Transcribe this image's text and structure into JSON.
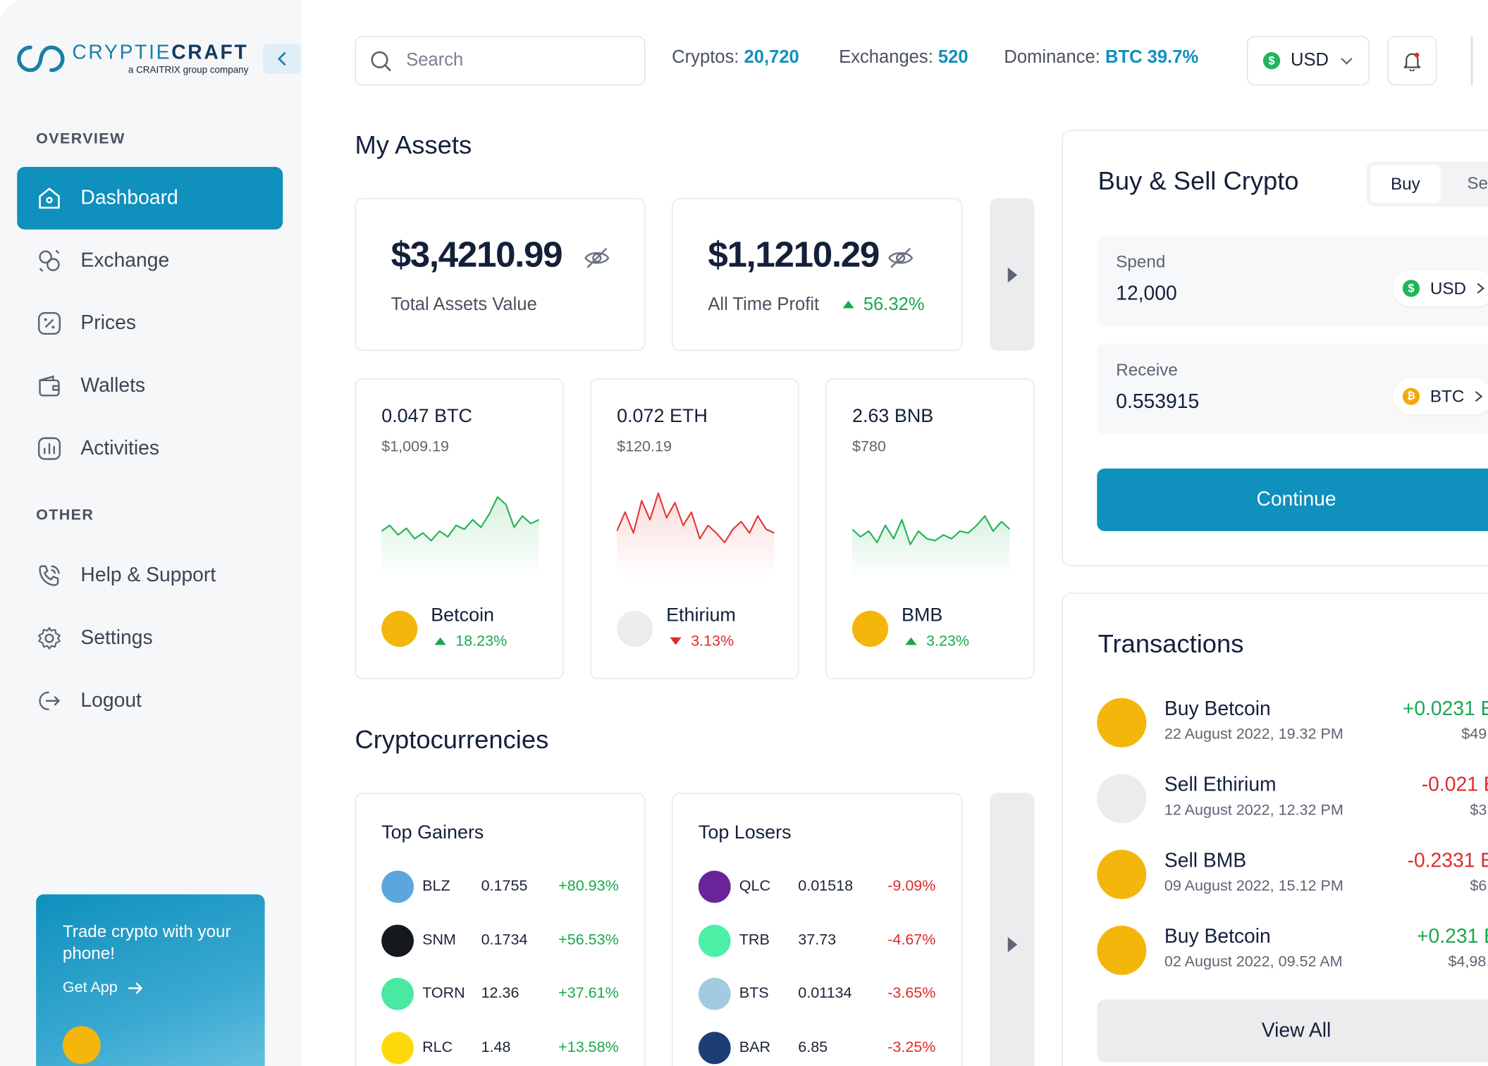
{
  "brand": {
    "name_light": "CRYPTIE",
    "name_bold": "CRAFT",
    "tagline": "a CRAITRIX group company"
  },
  "sidebar": {
    "overview_label": "OVERVIEW",
    "other_label": "OTHER",
    "items": [
      {
        "label": "Dashboard",
        "icon": "home-icon",
        "active": true
      },
      {
        "label": "Exchange",
        "icon": "exchange-icon"
      },
      {
        "label": "Prices",
        "icon": "percent-icon"
      },
      {
        "label": "Wallets",
        "icon": "wallet-icon"
      },
      {
        "label": "Activities",
        "icon": "chart-icon"
      }
    ],
    "other_items": [
      {
        "label": "Help & Support",
        "icon": "phone-icon"
      },
      {
        "label": "Settings",
        "icon": "gear-icon"
      },
      {
        "label": "Logout",
        "icon": "logout-icon"
      }
    ],
    "promo": {
      "title": "Trade crypto with your phone!",
      "link": "Get App"
    }
  },
  "header": {
    "search_placeholder": "Search",
    "stats": [
      {
        "label": "Cryptos:",
        "value": "20,720"
      },
      {
        "label": "Exchanges:",
        "value": "520"
      },
      {
        "label": "Dominance:",
        "value": "BTC 39.7%"
      }
    ],
    "currency": "USD",
    "currency_symbol": "$"
  },
  "assets": {
    "title": "My Assets",
    "total_value": "$3,4210.99",
    "total_label": "Total Assets Value",
    "profit_value": "$1,1210.29",
    "profit_label": "All Time Profit",
    "profit_pct": "56.32%",
    "coins": [
      {
        "amount": "0.047 BTC",
        "usd": "$1,009.19",
        "name": "Betcoin",
        "change": "18.23%",
        "direction": "up",
        "color": "#f5b60b",
        "spark": [
          50,
          44,
          54,
          47,
          58,
          52,
          60,
          50,
          56,
          44,
          48,
          38,
          46,
          32,
          14,
          22,
          46,
          34,
          42,
          38
        ]
      },
      {
        "amount": "0.072 ETH",
        "usd": "$120.19",
        "name": "Ethirium",
        "change": "3.13%",
        "direction": "down",
        "color": "#ececec",
        "spark": [
          50,
          30,
          52,
          18,
          38,
          10,
          36,
          20,
          44,
          30,
          58,
          44,
          52,
          62,
          48,
          40,
          52,
          34,
          48,
          52
        ]
      },
      {
        "amount": "2.63 BNB",
        "usd": "$780",
        "name": "BMB",
        "change": "3.23%",
        "direction": "up",
        "color": "#f5b60b",
        "spark": [
          48,
          56,
          50,
          62,
          44,
          58,
          38,
          64,
          50,
          58,
          60,
          54,
          58,
          50,
          52,
          44,
          34,
          50,
          40,
          48
        ]
      }
    ]
  },
  "cryptos": {
    "title": "Cryptocurrencies",
    "gainers_title": "Top Gainers",
    "gainers": [
      {
        "symbol": "BLZ",
        "price": "0.1755",
        "change": "+80.93%",
        "color": "#5aa6dd"
      },
      {
        "symbol": "SNM",
        "price": "0.1734",
        "change": "+56.53%",
        "color": "#15181d"
      },
      {
        "symbol": "TORN",
        "price": "12.36",
        "change": "+37.61%",
        "color": "#4ae9a2"
      },
      {
        "symbol": "RLC",
        "price": "1.48",
        "change": "+13.58%",
        "color": "#fcd90a"
      }
    ],
    "losers_title": "Top Losers",
    "losers": [
      {
        "symbol": "QLC",
        "price": "0.01518",
        "change": "-9.09%",
        "color": "#6a2399"
      },
      {
        "symbol": "TRB",
        "price": "37.73",
        "change": "-4.67%",
        "color": "#4cefa6"
      },
      {
        "symbol": "BTS",
        "price": "0.01134",
        "change": "-3.65%",
        "color": "#a3cbdf"
      },
      {
        "symbol": "BAR",
        "price": "6.85",
        "change": "-3.25%",
        "color": "#1c3e74"
      }
    ]
  },
  "trade": {
    "title": "Buy & Sell Crypto",
    "tab_buy": "Buy",
    "tab_sell": "Se",
    "spend_label": "Spend",
    "spend_value": "12,000",
    "spend_currency": "USD",
    "receive_label": "Receive",
    "receive_value": "0.553915",
    "receive_currency": "BTC",
    "continue": "Continue"
  },
  "transactions": {
    "title": "Transactions",
    "items": [
      {
        "name": "Buy Betcoin",
        "date": "22 August 2022, 19.32 PM",
        "amount": "+0.0231 E",
        "usd": "$49",
        "direction": "up",
        "color": "#f5b60b"
      },
      {
        "name": "Sell Ethirium",
        "date": "12 August 2022, 12.32 PM",
        "amount": "-0.021 E",
        "usd": "$3",
        "direction": "down",
        "color": "#ececec"
      },
      {
        "name": "Sell BMB",
        "date": "09 August 2022, 15.12 PM",
        "amount": "-0.2331 E",
        "usd": "$6",
        "direction": "down",
        "color": "#f5b60b"
      },
      {
        "name": "Buy Betcoin",
        "date": "02 August 2022, 09.52 AM",
        "amount": "+0.231 E",
        "usd": "$4,98",
        "direction": "up",
        "color": "#f5b60b"
      }
    ],
    "view_all": "View All"
  }
}
